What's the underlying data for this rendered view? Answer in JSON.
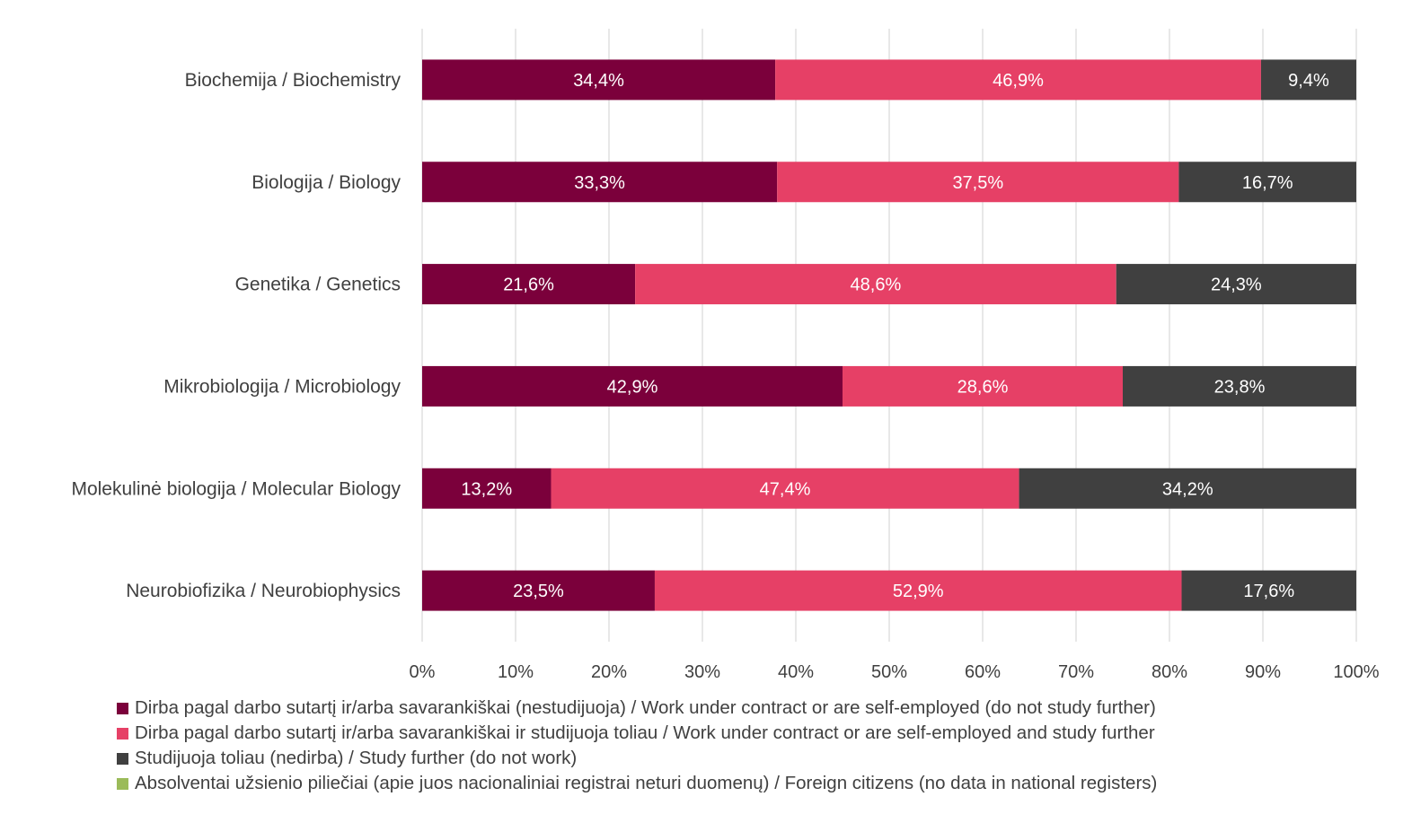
{
  "chart_data": {
    "type": "bar",
    "orientation": "horizontal",
    "stacked": true,
    "categories": [
      "Biochemija / Biochemistry",
      "Biologija / Biology",
      "Genetika / Genetics",
      "Mikrobiologija / Microbiology",
      "Molekulinė biologija / Molecular Biology",
      "Neurobiofizika / Neurobiophysics"
    ],
    "series": [
      {
        "name": "Dirba pagal darbo sutartį ir/arba savarankiškai (nestudijuoja) / Work under contract or are self-employed (do not study further)",
        "color": "#7B003B",
        "values": [
          34.4,
          33.3,
          21.6,
          42.9,
          13.2,
          23.5
        ],
        "labels": [
          "34,4%",
          "33,3%",
          "21,6%",
          "42,9%",
          "13,2%",
          "23,5%"
        ]
      },
      {
        "name": "Dirba pagal darbo sutartį ir/arba savarankiškai  ir studijuoja toliau / Work under contract or are self-employed and study further",
        "color": "#E64066",
        "values": [
          46.9,
          37.5,
          48.6,
          28.6,
          47.4,
          52.9
        ],
        "labels": [
          "46,9%",
          "37,5%",
          "48,6%",
          "28,6%",
          "47,4%",
          "52,9%"
        ]
      },
      {
        "name": "Studijuoja toliau (nedirba) / Study further (do not work)",
        "color": "#404040",
        "values": [
          9.4,
          16.7,
          24.3,
          23.8,
          34.2,
          17.6
        ],
        "labels": [
          "9,4%",
          "16,7%",
          "24,3%",
          "23,8%",
          "34,2%",
          "17,6%"
        ]
      },
      {
        "name": "Absolventai užsienio piliečiai (apie juos nacionaliniai registrai neturi duomenų) / Foreign citizens (no data in national registers)",
        "color": "#9BBB59",
        "values": [
          0,
          0,
          0,
          0,
          0,
          0
        ],
        "labels": [
          "",
          "",
          "",
          "",
          "",
          ""
        ]
      }
    ],
    "segment_extent": [
      [
        0,
        37.8,
        37.8,
        52.0,
        89.8,
        10.2
      ],
      [
        0,
        38.0,
        38.0,
        43.0,
        81.0,
        19.0
      ],
      [
        0,
        22.8,
        22.8,
        51.5,
        74.3,
        25.7
      ],
      [
        0,
        45.0,
        45.0,
        30.0,
        75.0,
        25.0
      ],
      [
        0,
        13.8,
        13.8,
        50.1,
        63.9,
        36.1
      ],
      [
        0,
        24.9,
        24.9,
        56.4,
        81.3,
        18.7
      ]
    ],
    "xticks": [
      "0%",
      "10%",
      "20%",
      "30%",
      "40%",
      "50%",
      "60%",
      "70%",
      "80%",
      "90%",
      "100%"
    ],
    "xlim": [
      0,
      100
    ],
    "grid": true,
    "legend_position": "bottom"
  }
}
